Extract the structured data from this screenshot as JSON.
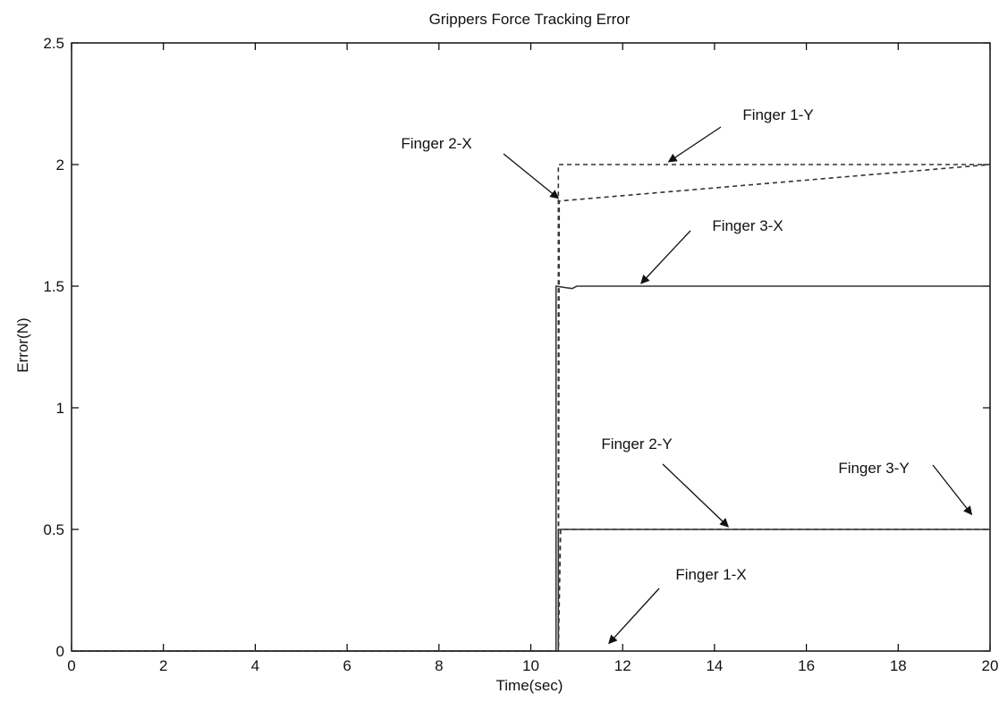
{
  "chart_data": {
    "type": "line",
    "title": "Grippers Force Tracking Error",
    "xlabel": "Time(sec)",
    "ylabel": "Error(N)",
    "xlim": [
      0,
      20
    ],
    "ylim": [
      0,
      2.5
    ],
    "xticks": [
      "0",
      "2",
      "4",
      "6",
      "8",
      "10",
      "12",
      "14",
      "16",
      "18",
      "20"
    ],
    "yticks": [
      "0",
      "0.5",
      "1",
      "1.5",
      "2",
      "2.5"
    ],
    "grid": false,
    "colors": {
      "line": "#333333",
      "axis": "#000000",
      "text": "#111111"
    },
    "series": [
      {
        "name": "Finger 1-X",
        "style": "dotted",
        "x": [
          0,
          10.7,
          11.0,
          11.2,
          20
        ],
        "y": [
          0,
          0,
          0,
          0,
          0
        ]
      },
      {
        "name": "Finger 1-Y",
        "style": "dashed",
        "x": [
          0,
          10.6,
          10.6,
          20
        ],
        "y": [
          0,
          0,
          2.0,
          2.0
        ]
      },
      {
        "name": "Finger 2-X",
        "style": "dashed",
        "x": [
          0,
          10.6,
          10.62,
          20
        ],
        "y": [
          0,
          0,
          1.85,
          2.0
        ]
      },
      {
        "name": "Finger 2-Y",
        "style": "dashed",
        "x": [
          0,
          10.6,
          10.65,
          11.2,
          20
        ],
        "y": [
          0,
          0,
          0.5,
          0.5,
          0.5
        ]
      },
      {
        "name": "Finger 3-X",
        "style": "solid",
        "x": [
          0,
          10.55,
          10.55,
          10.9,
          11.0,
          20
        ],
        "y": [
          0,
          0,
          1.5,
          1.49,
          1.5,
          1.5
        ]
      },
      {
        "name": "Finger 3-Y",
        "style": "solid",
        "x": [
          0,
          10.6,
          10.6,
          11.5,
          20
        ],
        "y": [
          0,
          0,
          0.5,
          0.5,
          0.5
        ]
      }
    ],
    "annotations": [
      {
        "text": "Finger 1-Y",
        "target": [
          13.0,
          2.0
        ]
      },
      {
        "text": "Finger 2-X",
        "target": [
          10.6,
          1.85
        ]
      },
      {
        "text": "Finger 3-X",
        "target": [
          12.4,
          1.5
        ]
      },
      {
        "text": "Finger 2-Y",
        "target": [
          14.3,
          0.5
        ]
      },
      {
        "text": "Finger 3-Y",
        "target": [
          19.6,
          0.55
        ]
      },
      {
        "text": "Finger 1-X",
        "target": [
          11.7,
          0.02
        ]
      }
    ]
  }
}
